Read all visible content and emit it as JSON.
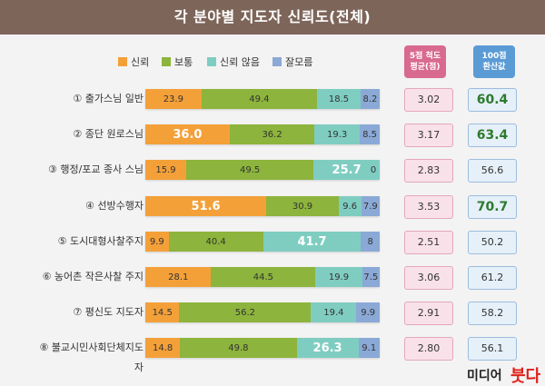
{
  "title": "각 분야별 지도자 신뢰도(전체)",
  "legend": [
    {
      "label": "신뢰",
      "color": "#f4a039"
    },
    {
      "label": "보통",
      "color": "#8db43c"
    },
    {
      "label": "신뢰 않음",
      "color": "#7fcdc1"
    },
    {
      "label": "잘모름",
      "color": "#8aa9d6"
    }
  ],
  "columns": {
    "five_point_header": [
      "5점 척도",
      "평균(점)"
    ],
    "hundred_point_header": [
      "100점",
      "환산값"
    ]
  },
  "chart_data": {
    "type": "bar",
    "stacked": true,
    "orientation": "horizontal",
    "title": "각 분야별 지도자 신뢰도(전체)",
    "categories": [
      "① 출가스님 일반",
      "② 종단 원로스님",
      "③ 행정/포교 종사 스님",
      "④ 선방수행자",
      "⑤ 도시대형사찰주지",
      "⑥ 농어촌 작은사찰 주지",
      "⑦ 평신도 지도자",
      "⑧ 불교시민사회단체지도자"
    ],
    "series": [
      {
        "name": "신뢰",
        "color": "#f4a039",
        "values": [
          23.9,
          36.0,
          15.9,
          51.6,
          9.9,
          28.1,
          14.5,
          14.8
        ],
        "labels": [
          "23.9",
          "36.0",
          "15.9",
          "51.6",
          "9.9",
          "28.1",
          "14.5",
          "14.8"
        ]
      },
      {
        "name": "보통",
        "color": "#8db43c",
        "values": [
          49.4,
          36.2,
          49.5,
          30.9,
          40.4,
          44.5,
          56.2,
          49.8
        ],
        "labels": [
          "49.4",
          "36.2",
          "49.5",
          "30.9",
          "40.4",
          "44.5",
          "56.2",
          "49.8"
        ]
      },
      {
        "name": "신뢰 않음",
        "color": "#7fcdc1",
        "values": [
          18.5,
          19.3,
          25.7,
          9.6,
          41.7,
          19.9,
          19.4,
          26.3
        ],
        "labels": [
          "18.5",
          "19.3",
          "25.7",
          "9.6",
          "41.7",
          "19.9",
          "19.4",
          "26.3"
        ]
      },
      {
        "name": "잘모름",
        "color": "#8aa9d6",
        "values": [
          8.2,
          8.5,
          0,
          7.9,
          8,
          7.5,
          9.9,
          9.1
        ],
        "labels": [
          "8.2",
          "8.5",
          "0",
          "7.9",
          "8",
          "7.5",
          "9.9",
          "9.1"
        ]
      }
    ],
    "highlight": [
      [
        false,
        false,
        false,
        false
      ],
      [
        true,
        false,
        false,
        false
      ],
      [
        false,
        false,
        true,
        false
      ],
      [
        true,
        false,
        false,
        false
      ],
      [
        false,
        false,
        true,
        false
      ],
      [
        false,
        false,
        false,
        false
      ],
      [
        false,
        false,
        false,
        false
      ],
      [
        false,
        false,
        true,
        false
      ]
    ],
    "five_point_avg": [
      "3.02",
      "3.17",
      "2.83",
      "3.53",
      "2.51",
      "3.06",
      "2.91",
      "2.80"
    ],
    "hundred_point": [
      "60.4",
      "63.4",
      "56.6",
      "70.7",
      "50.2",
      "61.2",
      "58.2",
      "56.1"
    ],
    "hundred_point_highlight": [
      true,
      true,
      false,
      true,
      false,
      false,
      false,
      false
    ]
  },
  "logo": {
    "text_dark": "미디어",
    "text_red": "붓다"
  }
}
